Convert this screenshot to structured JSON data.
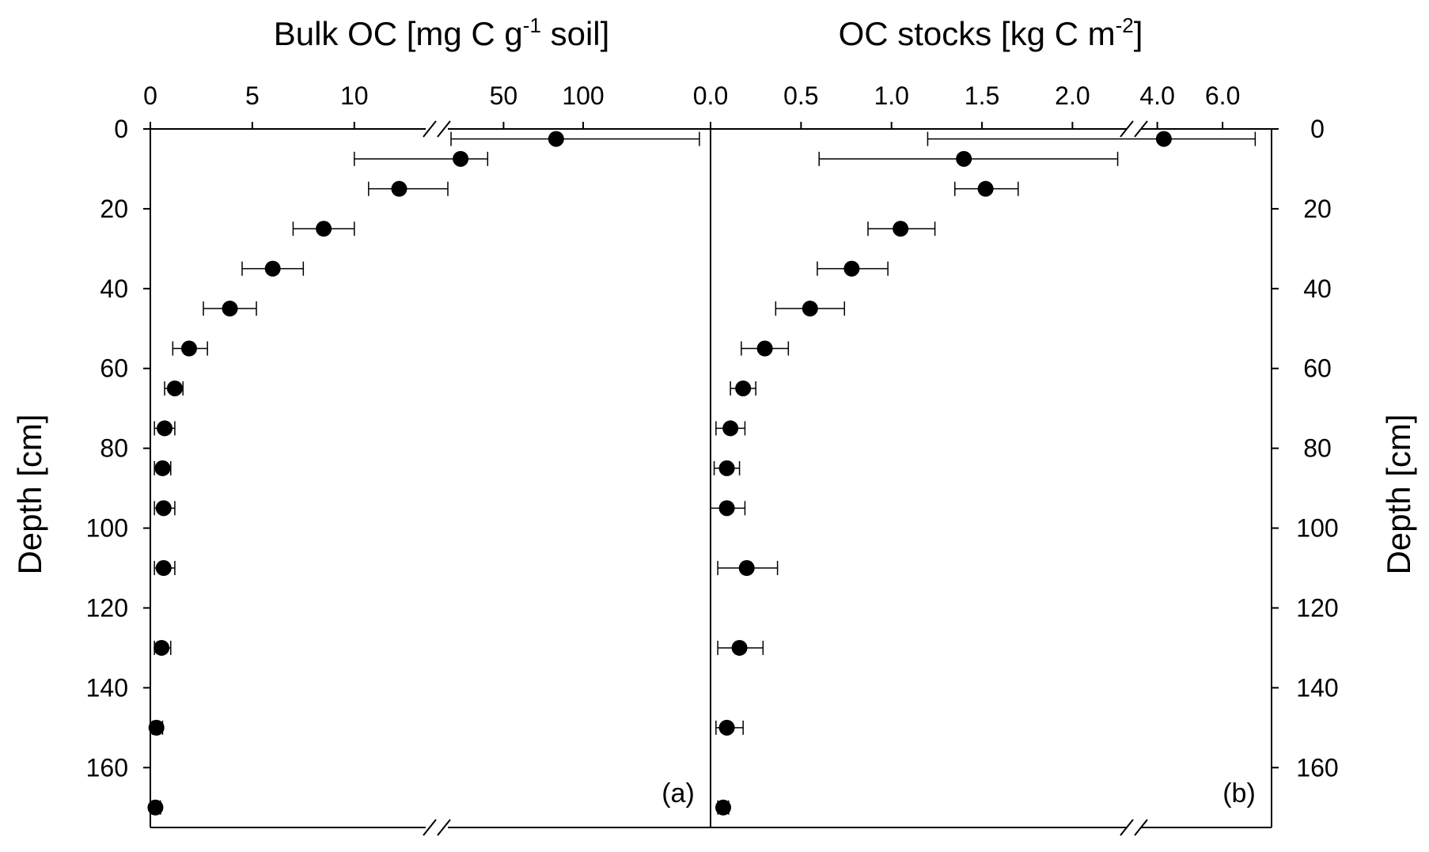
{
  "chart_data": [
    {
      "type": "scatter",
      "panel_label": "(a)",
      "title": "",
      "xlabel": {
        "main": "Bulk OC [mg C g",
        "sup": "-1",
        "tail": " soil]"
      },
      "ylabel": "Depth [cm]",
      "broken_x_axis": true,
      "x_segments": [
        {
          "range": [
            0,
            13.5
          ],
          "ticks": [
            "0",
            "5",
            "10"
          ],
          "tick_values": [
            0,
            5,
            10
          ]
        },
        {
          "range": [
            15,
            180
          ],
          "ticks": [
            "50",
            "100"
          ],
          "tick_values": [
            50,
            100
          ]
        }
      ],
      "ylim": [
        0,
        175
      ],
      "yticks": [
        "0",
        "20",
        "40",
        "60",
        "80",
        "100",
        "120",
        "140",
        "160"
      ],
      "ytick_values": [
        0,
        20,
        40,
        60,
        80,
        100,
        120,
        140,
        160
      ],
      "error_bars": "horizontal",
      "points": [
        {
          "depth": 2.5,
          "value": 83.0,
          "err_low": 17.0,
          "err_high": 173.0
        },
        {
          "depth": 7.5,
          "value": 23.0,
          "err_low": 10.0,
          "err_high": 40.0
        },
        {
          "depth": 15.0,
          "value": 12.2,
          "err_low": 10.7,
          "err_high": 13.6
        },
        {
          "depth": 25.0,
          "value": 8.5,
          "err_low": 7.0,
          "err_high": 10.0
        },
        {
          "depth": 35.0,
          "value": 6.0,
          "err_low": 4.5,
          "err_high": 7.5
        },
        {
          "depth": 45.0,
          "value": 3.9,
          "err_low": 2.6,
          "err_high": 5.2
        },
        {
          "depth": 55.0,
          "value": 1.9,
          "err_low": 1.1,
          "err_high": 2.8
        },
        {
          "depth": 65.0,
          "value": 1.2,
          "err_low": 0.7,
          "err_high": 1.6
        },
        {
          "depth": 75.0,
          "value": 0.7,
          "err_low": 0.2,
          "err_high": 1.2
        },
        {
          "depth": 85.0,
          "value": 0.6,
          "err_low": 0.2,
          "err_high": 1.0
        },
        {
          "depth": 95.0,
          "value": 0.65,
          "err_low": 0.2,
          "err_high": 1.2
        },
        {
          "depth": 110.0,
          "value": 0.65,
          "err_low": 0.2,
          "err_high": 1.2
        },
        {
          "depth": 130.0,
          "value": 0.55,
          "err_low": 0.2,
          "err_high": 1.0
        },
        {
          "depth": 150.0,
          "value": 0.3,
          "err_low": 0.1,
          "err_high": 0.6
        },
        {
          "depth": 170.0,
          "value": 0.25,
          "err_low": 0.1,
          "err_high": 0.5
        }
      ]
    },
    {
      "type": "scatter",
      "panel_label": "(b)",
      "title": "",
      "xlabel": {
        "main": "OC stocks [kg C m",
        "sup": "-2",
        "tail": "]"
      },
      "ylabel": "Depth [cm]",
      "broken_x_axis": true,
      "x_segments": [
        {
          "range": [
            0,
            2.3
          ],
          "ticks": [
            "0.0",
            "0.5",
            "1.0",
            "1.5",
            "2.0"
          ],
          "tick_values": [
            0,
            0.5,
            1.0,
            1.5,
            2.0
          ]
        },
        {
          "range": [
            3.5,
            7.5
          ],
          "ticks": [
            "4.0",
            "6.0"
          ],
          "tick_values": [
            4.0,
            6.0
          ]
        }
      ],
      "ylim": [
        0,
        175
      ],
      "yticks": [
        "0",
        "20",
        "40",
        "60",
        "80",
        "100",
        "120",
        "140",
        "160"
      ],
      "ytick_values": [
        0,
        20,
        40,
        60,
        80,
        100,
        120,
        140,
        160
      ],
      "error_bars": "horizontal",
      "points": [
        {
          "depth": 2.5,
          "value": 4.2,
          "err_low": 1.2,
          "err_high": 7.0
        },
        {
          "depth": 7.5,
          "value": 1.4,
          "err_low": 0.6,
          "err_high": 2.25
        },
        {
          "depth": 15.0,
          "value": 1.52,
          "err_low": 1.35,
          "err_high": 1.7
        },
        {
          "depth": 25.0,
          "value": 1.05,
          "err_low": 0.87,
          "err_high": 1.24
        },
        {
          "depth": 35.0,
          "value": 0.78,
          "err_low": 0.59,
          "err_high": 0.98
        },
        {
          "depth": 45.0,
          "value": 0.55,
          "err_low": 0.36,
          "err_high": 0.74
        },
        {
          "depth": 55.0,
          "value": 0.3,
          "err_low": 0.17,
          "err_high": 0.43
        },
        {
          "depth": 65.0,
          "value": 0.18,
          "err_low": 0.11,
          "err_high": 0.25
        },
        {
          "depth": 75.0,
          "value": 0.11,
          "err_low": 0.03,
          "err_high": 0.19
        },
        {
          "depth": 85.0,
          "value": 0.09,
          "err_low": 0.02,
          "err_high": 0.16
        },
        {
          "depth": 95.0,
          "value": 0.09,
          "err_low": 0.0,
          "err_high": 0.19
        },
        {
          "depth": 110.0,
          "value": 0.2,
          "err_low": 0.04,
          "err_high": 0.37
        },
        {
          "depth": 130.0,
          "value": 0.16,
          "err_low": 0.04,
          "err_high": 0.29
        },
        {
          "depth": 150.0,
          "value": 0.09,
          "err_low": 0.03,
          "err_high": 0.18
        },
        {
          "depth": 170.0,
          "value": 0.07,
          "err_low": 0.04,
          "err_high": 0.1
        }
      ]
    }
  ]
}
